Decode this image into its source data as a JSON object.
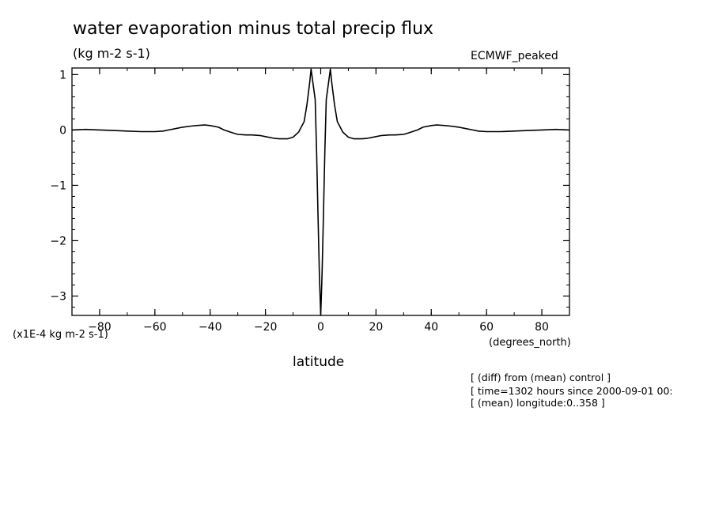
{
  "chart_data": {
    "type": "line",
    "title": "water evaporation minus total precip flux",
    "units": "(kg m-2 s-1)",
    "dataset_label": "ECMWF_peaked",
    "scale_note": "(x1E-4 kg m-2 s-1)",
    "xlabel": "latitude",
    "x_unit": "(degrees_north)",
    "xlim": [
      -90,
      90
    ],
    "ylim": [
      -3.35,
      1.12
    ],
    "x_ticks": [
      -80,
      -60,
      -40,
      -20,
      0,
      20,
      40,
      60,
      80
    ],
    "y_ticks": [
      1,
      0,
      -1,
      -2,
      -3
    ],
    "grid": false,
    "info_lines": [
      "[ (diff) from (mean) control ]",
      "[ time=1302 hours since 2000-09-01 00:",
      "[ (mean) longitude:0..358 ]"
    ],
    "series": [
      {
        "x": [
          -90,
          -85,
          -80,
          -75,
          -70,
          -65,
          -60,
          -57,
          -55,
          -52,
          -50,
          -47,
          -45,
          -42,
          -40,
          -37,
          -35,
          -32,
          -30,
          -27,
          -25,
          -22,
          -20,
          -17,
          -15,
          -12,
          -10,
          -8,
          -6,
          -5,
          -4,
          -3.5,
          -2,
          -1.5,
          -1,
          -0.5,
          0,
          0.5,
          1,
          1.5,
          2,
          3.5,
          4,
          5,
          6,
          8,
          10,
          12,
          15,
          17,
          20,
          22,
          25,
          27,
          30,
          32,
          35,
          37,
          40,
          42,
          45,
          47,
          50,
          52,
          55,
          57,
          60,
          65,
          70,
          75,
          80,
          85,
          90
        ],
        "y": [
          0.0,
          0.01,
          0.0,
          -0.01,
          -0.02,
          -0.03,
          -0.03,
          -0.02,
          0.0,
          0.03,
          0.05,
          0.07,
          0.08,
          0.09,
          0.08,
          0.05,
          0.0,
          -0.05,
          -0.08,
          -0.09,
          -0.09,
          -0.1,
          -0.12,
          -0.15,
          -0.16,
          -0.16,
          -0.13,
          -0.04,
          0.15,
          0.45,
          0.85,
          1.1,
          0.55,
          -0.4,
          -1.5,
          -2.6,
          -3.35,
          -2.6,
          -1.5,
          -0.4,
          0.55,
          1.1,
          0.85,
          0.45,
          0.15,
          -0.04,
          -0.13,
          -0.16,
          -0.16,
          -0.15,
          -0.12,
          -0.1,
          -0.09,
          -0.09,
          -0.08,
          -0.05,
          0.0,
          0.05,
          0.08,
          0.09,
          0.08,
          0.07,
          0.05,
          0.03,
          0.0,
          -0.02,
          -0.03,
          -0.03,
          -0.02,
          -0.01,
          0.0,
          0.01,
          0.0
        ]
      }
    ]
  }
}
